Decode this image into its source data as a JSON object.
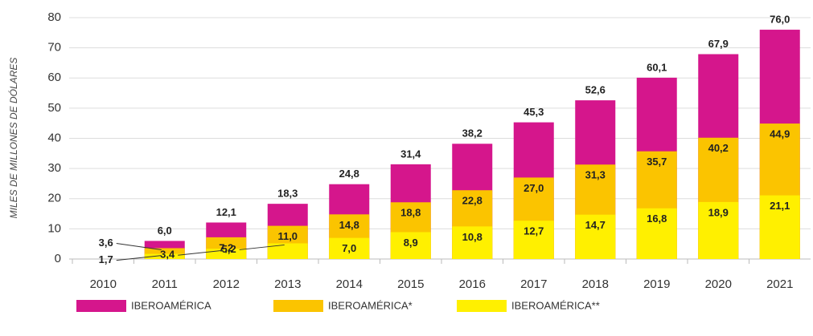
{
  "chart_data": {
    "type": "bar",
    "y_label": "MILES DE MILLONES DE DÓLARES",
    "categories": [
      "2010",
      "2011",
      "2012",
      "2013",
      "2014",
      "2015",
      "2016",
      "2017",
      "2018",
      "2019",
      "2020",
      "2021"
    ],
    "ylim": [
      0,
      80
    ],
    "yticks": [
      0,
      10,
      20,
      30,
      40,
      50,
      60,
      70,
      80
    ],
    "grid": true,
    "overlap": true,
    "series": [
      {
        "name": "IBEROAMÉRICA",
        "color": "#d5168c",
        "values": [
          null,
          6.0,
          12.1,
          18.3,
          24.8,
          31.4,
          38.2,
          45.3,
          52.6,
          60.1,
          67.9,
          76.0
        ],
        "value_labels": [
          null,
          "6,0",
          "12,1",
          "18,3",
          "24,8",
          "31,4",
          "38,2",
          "45,3",
          "52,6",
          "60,1",
          "67,9",
          "76,0"
        ]
      },
      {
        "name": "IBEROAMÉRICA*",
        "color": "#fbc400",
        "values": [
          null,
          3.6,
          7.2,
          11.0,
          14.8,
          18.8,
          22.8,
          27.0,
          31.3,
          35.7,
          40.2,
          44.9
        ],
        "value_labels": [
          null,
          "3,6",
          "7,2",
          "11,0",
          "14,8",
          "18,8",
          "22,8",
          "27,0",
          "31,3",
          "35,7",
          "40,2",
          "44,9"
        ]
      },
      {
        "name": "IBEROAMÉRICA**",
        "color": "#fff000",
        "values": [
          null,
          1.7,
          3.4,
          5.2,
          7.0,
          8.9,
          10.8,
          12.7,
          14.7,
          16.8,
          18.9,
          21.1
        ],
        "value_labels": [
          null,
          "1,7",
          "3,4",
          "5,2",
          "7,0",
          "8,9",
          "10,8",
          "12,7",
          "14,7",
          "16,8",
          "18,9",
          "21,1"
        ]
      }
    ]
  }
}
